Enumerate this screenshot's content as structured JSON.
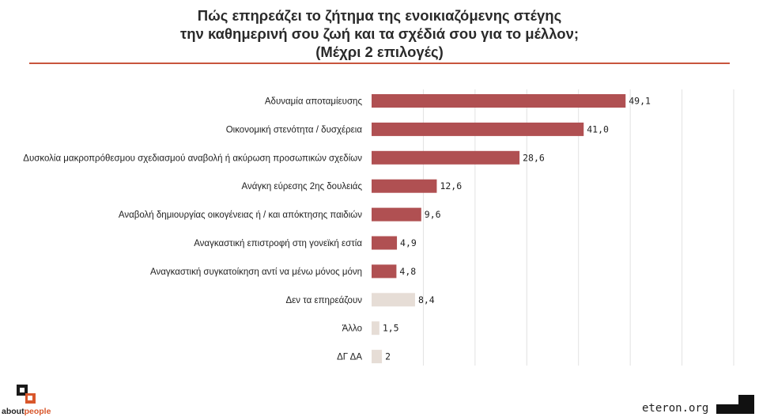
{
  "title_lines": [
    "Πώς επηρεάζει το ζήτημα της ενοικιαζόμενης στέγης",
    "την καθημερινή σου ζωή και τα σχέδιά σου για το μέλλον;",
    "(Μέχρι 2 επιλογές)"
  ],
  "colors": {
    "primary_bar": "#b05052",
    "muted_bar": "#e6ddd6",
    "accent_rule": "#c8553d",
    "brand_accent": "#d9572b"
  },
  "chart_data": {
    "type": "bar",
    "orientation": "horizontal",
    "categories": [
      "Αδυναμία αποταμίευσης",
      "Οικονομική στενότητα / δυσχέρεια",
      "Δυσκολία μακροπρόθεσμου σχεδιασμού αναβολή ή ακύρωση προσωπικών σχεδίων",
      "Ανάγκη εύρεσης 2ης δουλειάς",
      "Αναβολή δημιουργίας οικογένειας ή / και απόκτησης παιδιών",
      "Αναγκαστική επιστροφή στη γονεϊκή εστία",
      "Αναγκαστική συγκατοίκηση αντί να μένω μόνος μόνη",
      "Δεν τα επηρεάζουν",
      "Άλλο",
      "ΔΓ ΔΑ"
    ],
    "values": [
      49.1,
      41.0,
      28.6,
      12.6,
      9.6,
      4.9,
      4.8,
      8.4,
      1.5,
      2
    ],
    "value_labels": [
      "49,1",
      "41,0",
      "28,6",
      "12,6",
      "9,6",
      "4,9",
      "4,8",
      "8,4",
      "1,5",
      "2"
    ],
    "bar_group": [
      "primary",
      "primary",
      "primary",
      "primary",
      "primary",
      "primary",
      "primary",
      "muted",
      "muted",
      "muted"
    ],
    "xlim": [
      0,
      70
    ],
    "grid": true,
    "legend": "none"
  },
  "footer": {
    "brand_plain": "about",
    "brand_accent": "people",
    "site": "eteron.org"
  }
}
